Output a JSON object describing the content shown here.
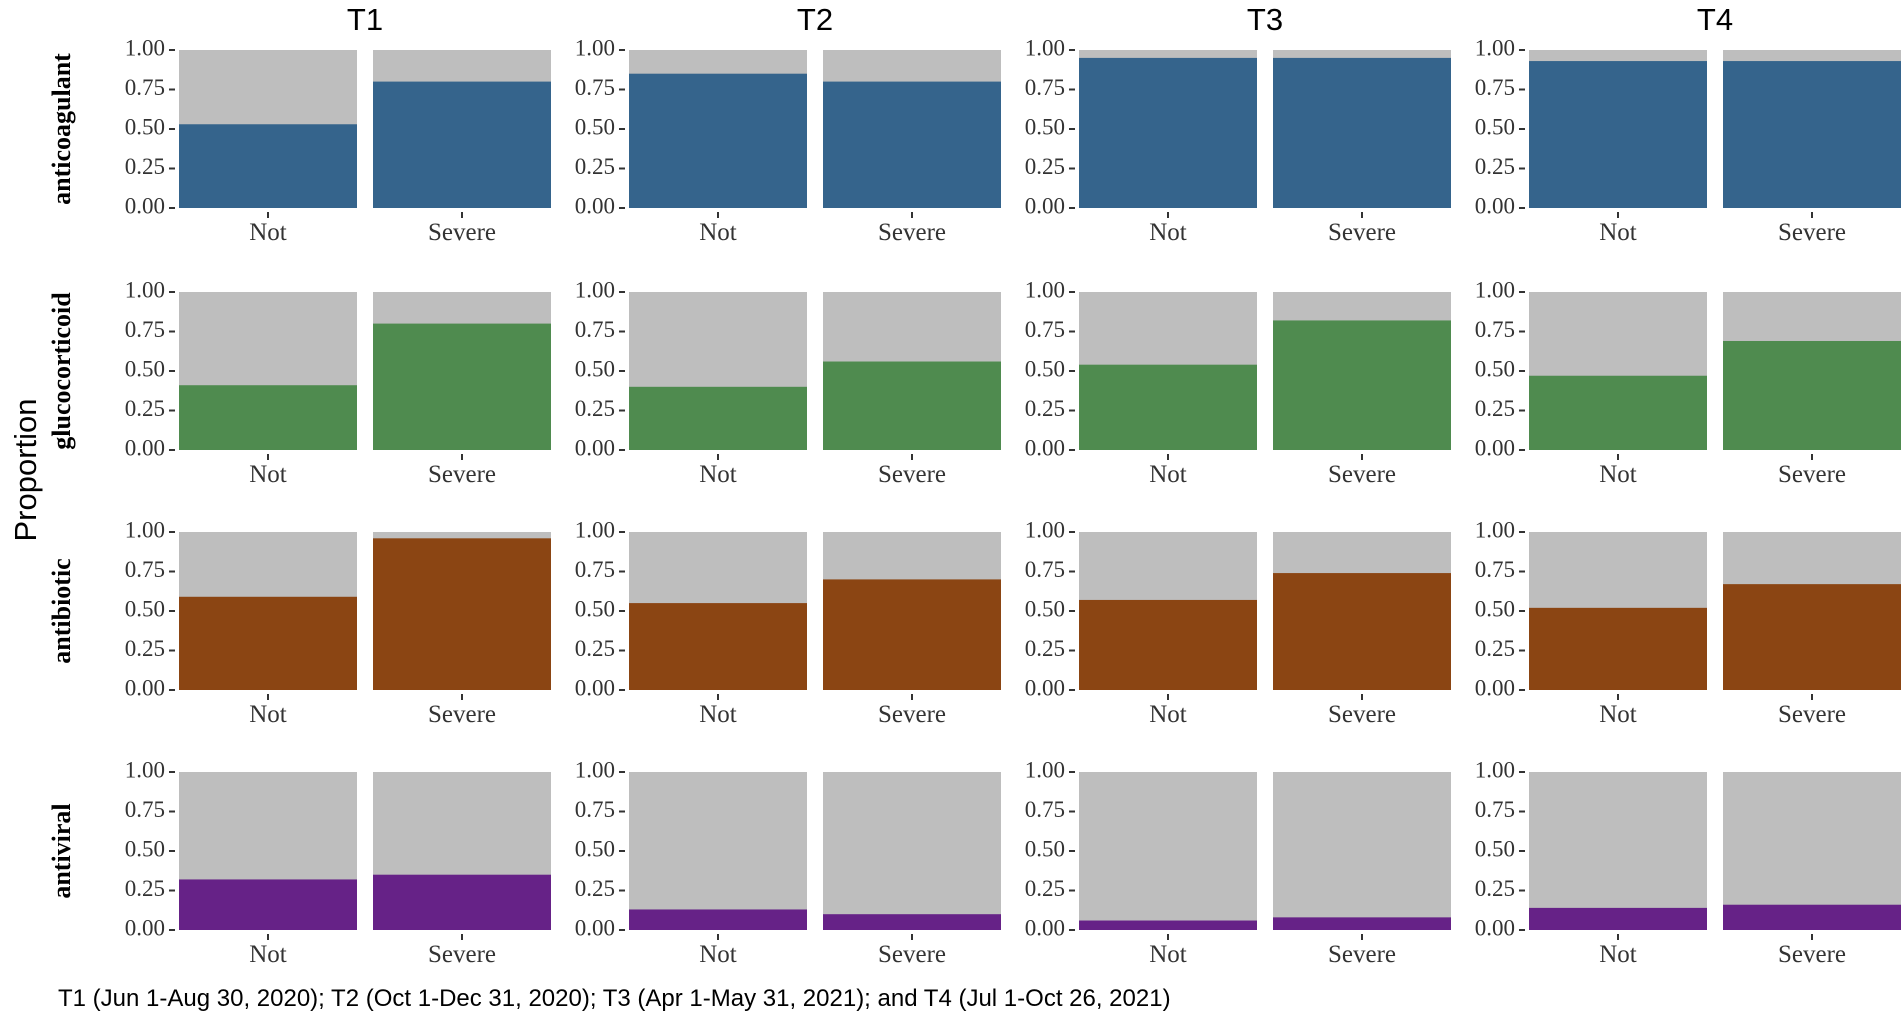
{
  "chart_data": {
    "type": "bar",
    "stacked": true,
    "y_title": "Proportion",
    "ylim": [
      0,
      1
    ],
    "y_ticks": [
      "0.00",
      "0.25",
      "0.50",
      "0.75",
      "1.00"
    ],
    "categories": [
      "Not",
      "Severe"
    ],
    "periods": [
      "T1",
      "T2",
      "T3",
      "T4"
    ],
    "background_color": "#bebebe",
    "rows": [
      {
        "name": "anticoagulant",
        "color": "#35648c",
        "values": {
          "T1": [
            0.53,
            0.8
          ],
          "T2": [
            0.85,
            0.8
          ],
          "T3": [
            0.95,
            0.95
          ],
          "T4": [
            0.93,
            0.93
          ]
        }
      },
      {
        "name": "glucocorticoid",
        "color": "#4f8b4f",
        "values": {
          "T1": [
            0.41,
            0.8
          ],
          "T2": [
            0.4,
            0.56
          ],
          "T3": [
            0.54,
            0.82
          ],
          "T4": [
            0.47,
            0.69
          ]
        }
      },
      {
        "name": "antibiotic",
        "color": "#8b4513",
        "values": {
          "T1": [
            0.59,
            0.96
          ],
          "T2": [
            0.55,
            0.7
          ],
          "T3": [
            0.57,
            0.74
          ],
          "T4": [
            0.52,
            0.67
          ]
        }
      },
      {
        "name": "antiviral",
        "color": "#662287",
        "values": {
          "T1": [
            0.32,
            0.35
          ],
          "T2": [
            0.13,
            0.1
          ],
          "T3": [
            0.06,
            0.08
          ],
          "T4": [
            0.14,
            0.16
          ]
        }
      }
    ],
    "footnote": "T1 (Jun 1-Aug 30, 2020); T2 (Oct 1-Dec 31, 2020); T3 (Apr 1-May 31, 2021); and T4 (Jul 1-Oct 26, 2021)"
  }
}
